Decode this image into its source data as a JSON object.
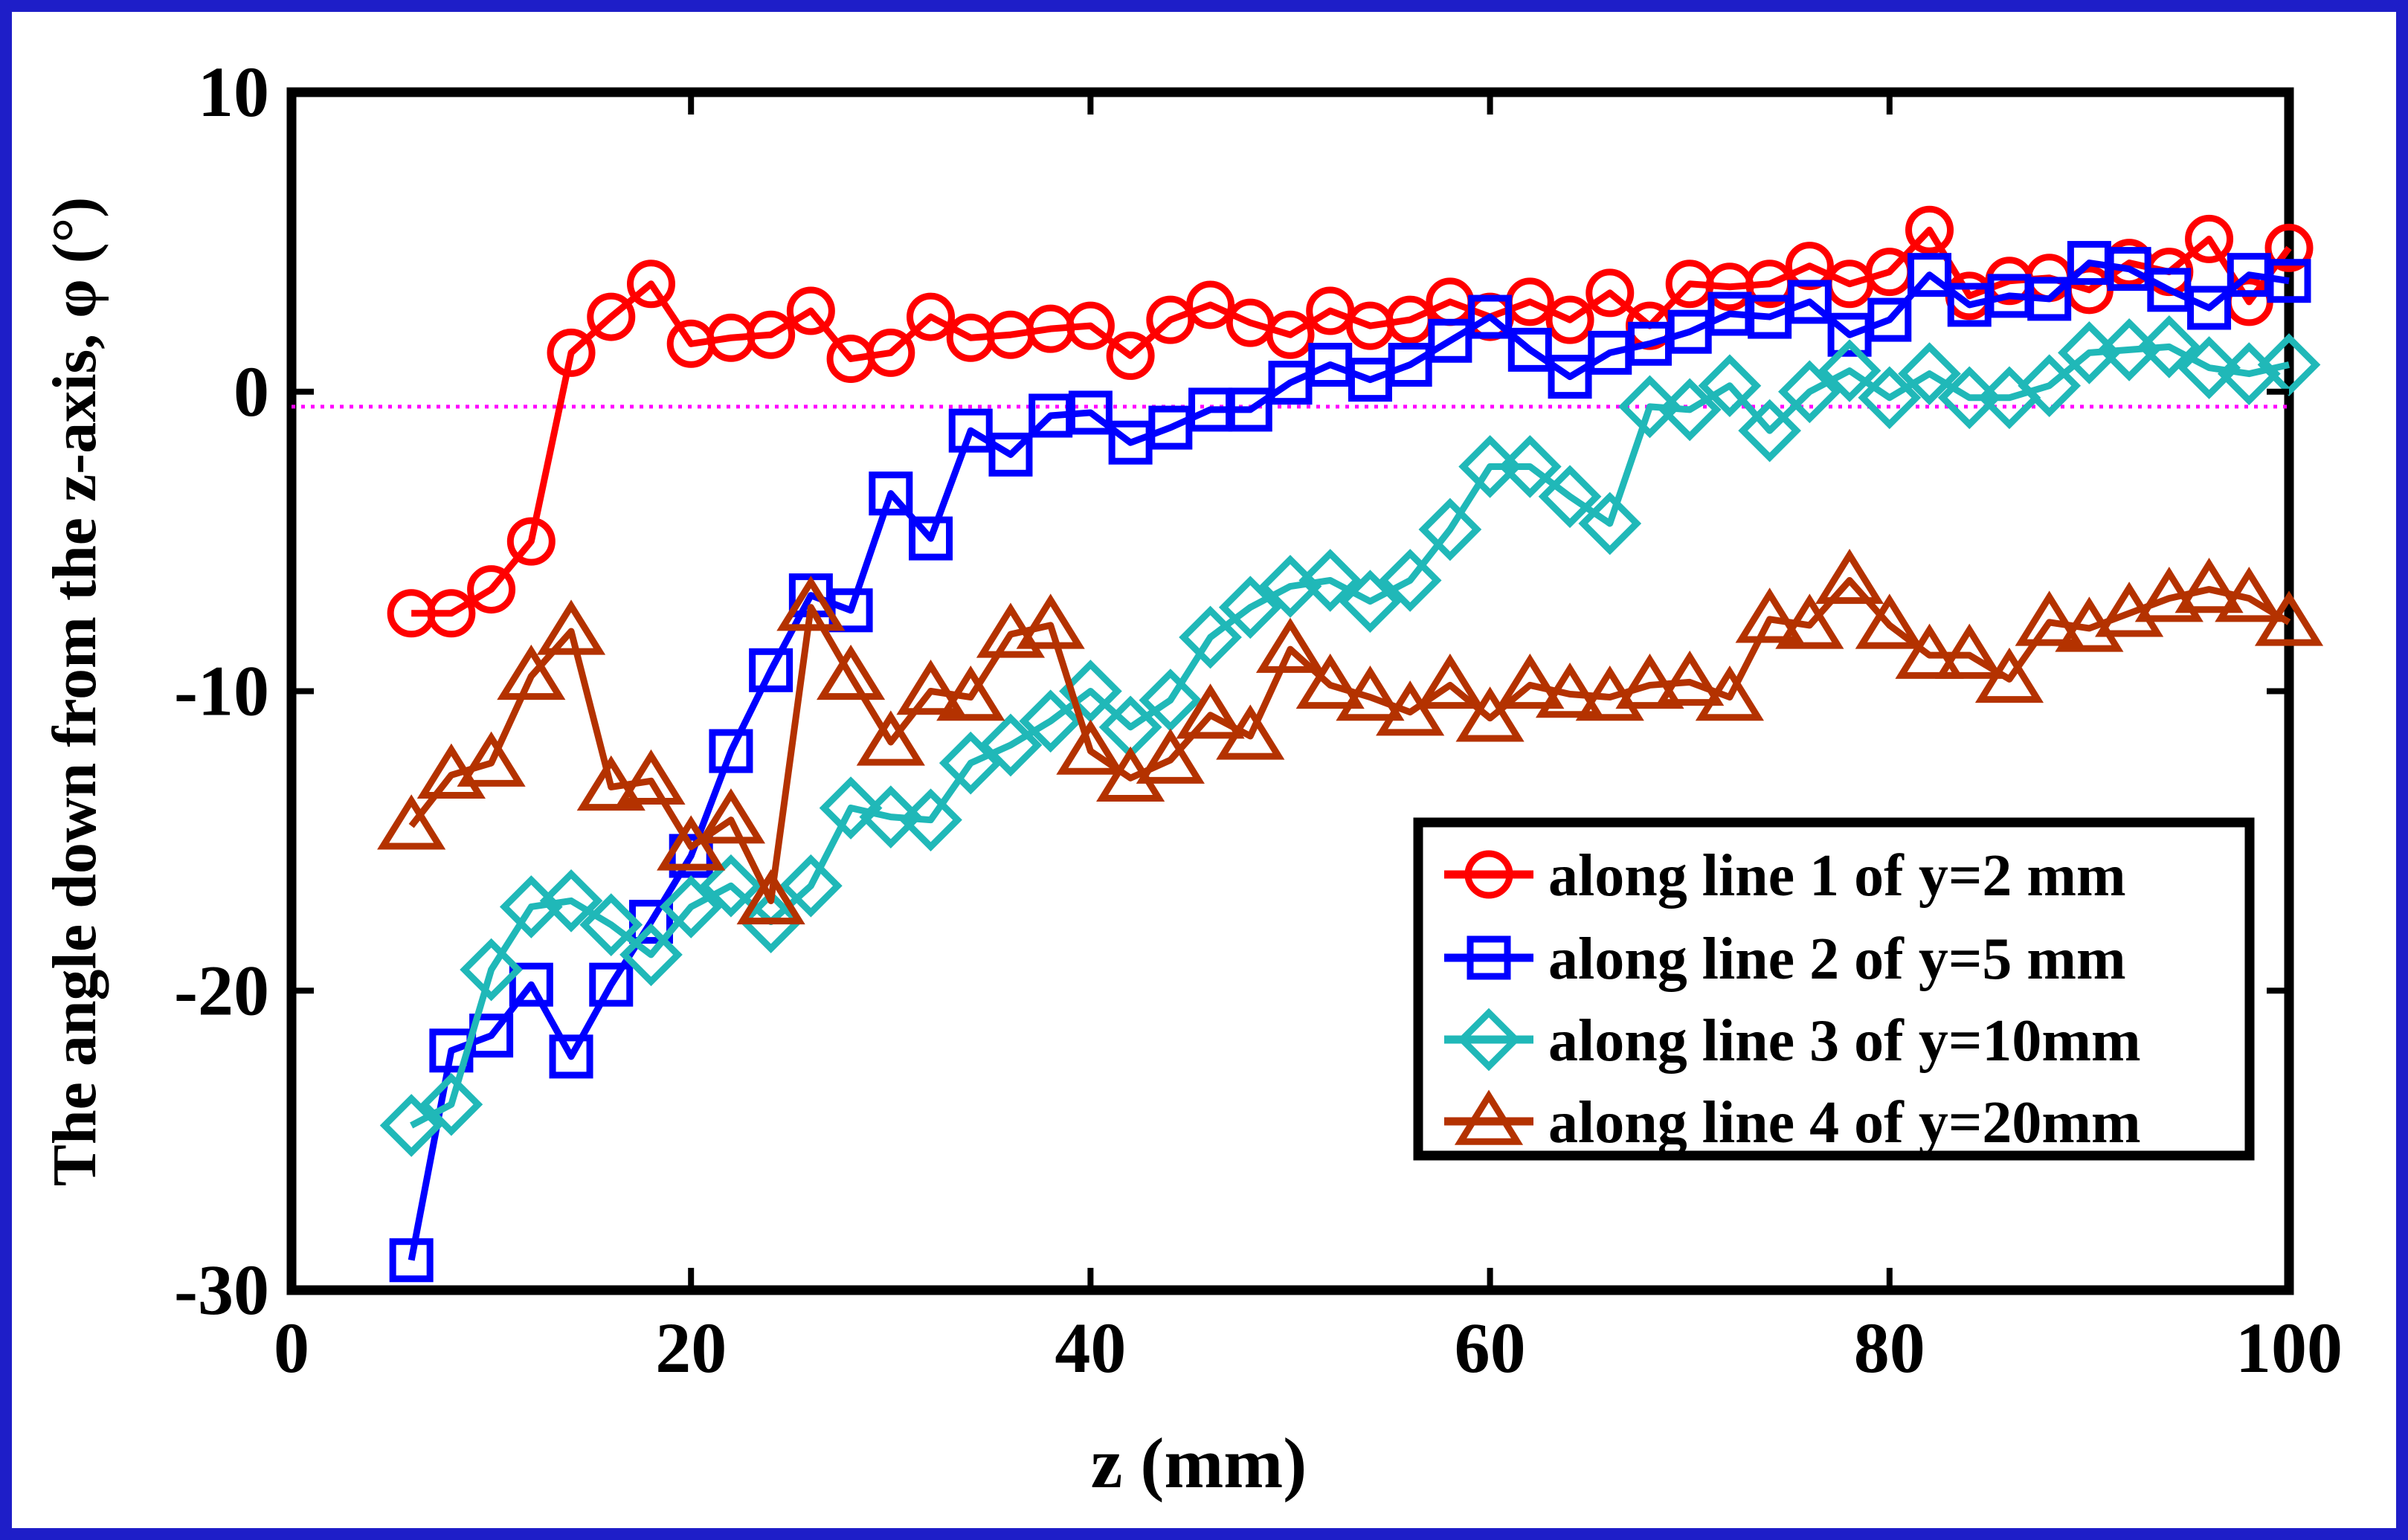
{
  "chart_data": {
    "type": "line",
    "title": "",
    "xlabel": "z (mm)",
    "ylabel": "The angle down from the z-axis, φ (°)",
    "xlim": [
      0,
      100
    ],
    "ylim": [
      -30,
      10
    ],
    "xticks": [
      0,
      20,
      40,
      60,
      80,
      100
    ],
    "yticks": [
      -30,
      -20,
      -10,
      0,
      10
    ],
    "xtick_labels": [
      "0",
      "20",
      "40",
      "60",
      "80",
      "100"
    ],
    "ytick_labels": [
      "-30",
      "-20",
      "-10",
      "0",
      "10"
    ],
    "grid": false,
    "legend_position": "lower-right",
    "reference_line": {
      "y": -0.5,
      "color": "#ff00ff",
      "style": "dotted"
    },
    "x": [
      6,
      8,
      10,
      12,
      14,
      16,
      18,
      20,
      22,
      24,
      26,
      28,
      30,
      32,
      34,
      36,
      38,
      40,
      42,
      44,
      46,
      48,
      50,
      52,
      54,
      56,
      58,
      60,
      62,
      64,
      66,
      68,
      70,
      72,
      74,
      76,
      78,
      80,
      82,
      84,
      86,
      88,
      90,
      92,
      94,
      96,
      98,
      100
    ],
    "series": [
      {
        "name": "along line 1 of y=2 mm",
        "color": "#ff0000",
        "marker": "circle",
        "values": [
          -7.4,
          -7.4,
          -6.6,
          -5.0,
          1.3,
          2.5,
          3.6,
          1.6,
          1.8,
          1.9,
          2.7,
          1.1,
          1.3,
          2.5,
          1.8,
          1.9,
          2.1,
          2.2,
          1.2,
          2.4,
          2.9,
          2.3,
          1.9,
          2.7,
          2.2,
          2.4,
          3.0,
          2.5,
          3.0,
          2.4,
          3.3,
          2.2,
          3.6,
          3.5,
          3.6,
          4.2,
          3.6,
          4.0,
          5.4,
          3.2,
          3.7,
          3.8,
          3.4,
          4.3,
          4.0,
          5.1,
          3.0,
          4.8
        ]
      },
      {
        "name": "along line 2 of y=5 mm",
        "color": "#0000ff",
        "marker": "square",
        "values": [
          -29.0,
          -22.0,
          -21.5,
          -19.8,
          -22.2,
          -19.8,
          -17.7,
          -15.5,
          -12.0,
          -9.3,
          -6.8,
          -7.3,
          -3.4,
          -4.9,
          -1.3,
          -2.1,
          -0.8,
          -0.7,
          -1.7,
          -1.2,
          -0.6,
          -0.6,
          0.3,
          0.9,
          0.4,
          0.9,
          1.7,
          2.5,
          1.4,
          0.5,
          1.3,
          1.6,
          2.0,
          2.6,
          2.5,
          3.0,
          1.9,
          2.4,
          3.9,
          2.9,
          3.2,
          3.1,
          4.3,
          4.1,
          3.4,
          2.8,
          3.9,
          3.7
        ]
      },
      {
        "name": "along line 3 of y=10mm",
        "color": "#20b8b8",
        "marker": "diamond",
        "values": [
          -24.5,
          -23.8,
          -19.3,
          -17.2,
          -17.0,
          -17.8,
          -18.8,
          -17.2,
          -16.5,
          -17.7,
          -16.5,
          -13.9,
          -14.2,
          -14.3,
          -12.4,
          -11.8,
          -11.0,
          -10.0,
          -11.2,
          -10.3,
          -8.2,
          -7.2,
          -6.5,
          -6.3,
          -7.0,
          -6.3,
          -4.6,
          -2.5,
          -2.5,
          -3.5,
          -4.4,
          -0.5,
          -0.6,
          0.2,
          -1.3,
          0.0,
          0.7,
          -0.2,
          0.6,
          -0.2,
          -0.2,
          0.2,
          1.3,
          1.4,
          1.5,
          0.8,
          0.6,
          0.9
        ]
      },
      {
        "name": "along line 4 of y=20mm",
        "color": "#b43200",
        "marker": "triangle",
        "values": [
          -14.5,
          -12.8,
          -12.4,
          -9.5,
          -8.0,
          -13.2,
          -13.0,
          -15.2,
          -14.3,
          -17.0,
          -7.2,
          -9.5,
          -11.7,
          -10.0,
          -10.2,
          -8.1,
          -7.8,
          -12.0,
          -12.9,
          -12.3,
          -10.8,
          -11.5,
          -8.6,
          -9.8,
          -10.2,
          -10.7,
          -9.8,
          -10.9,
          -9.8,
          -10.1,
          -10.2,
          -9.8,
          -9.7,
          -10.2,
          -7.6,
          -7.8,
          -6.3,
          -7.8,
          -8.8,
          -8.8,
          -9.6,
          -7.7,
          -7.9,
          -7.4,
          -6.9,
          -6.6,
          -6.9,
          -7.7
        ]
      }
    ]
  }
}
